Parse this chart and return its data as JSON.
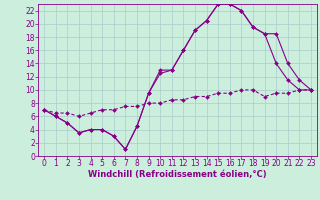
{
  "xlabel": "Windchill (Refroidissement éolien,°C)",
  "bg_color": "#cceedd",
  "grid_color": "#aacccc",
  "line_color": "#880088",
  "spine_color": "#880088",
  "xlim": [
    -0.5,
    23.5
  ],
  "ylim": [
    0,
    23
  ],
  "xticks": [
    0,
    1,
    2,
    3,
    4,
    5,
    6,
    7,
    8,
    9,
    10,
    11,
    12,
    13,
    14,
    15,
    16,
    17,
    18,
    19,
    20,
    21,
    22,
    23
  ],
  "yticks": [
    0,
    2,
    4,
    6,
    8,
    10,
    12,
    14,
    16,
    18,
    20,
    22
  ],
  "line1_x": [
    0,
    1,
    2,
    3,
    4,
    5,
    6,
    7,
    8,
    9,
    10,
    11,
    12,
    13,
    14,
    15,
    16,
    17,
    18,
    19,
    20,
    21,
    22,
    23
  ],
  "line1_y": [
    7,
    6,
    5,
    3.5,
    4,
    4,
    3,
    1,
    4.5,
    9.5,
    13,
    13,
    16,
    19,
    20.5,
    23,
    23,
    22,
    19.5,
    18.5,
    14,
    11.5,
    10,
    10
  ],
  "line2_x": [
    0,
    1,
    2,
    3,
    4,
    5,
    6,
    7,
    8,
    9,
    10,
    11,
    12,
    13,
    14,
    15,
    16,
    17,
    18,
    19,
    20,
    21,
    22,
    23
  ],
  "line2_y": [
    7,
    6,
    5,
    3.5,
    4,
    4,
    3,
    1,
    4.5,
    9.5,
    12.5,
    13,
    16,
    19,
    20.5,
    23,
    23,
    22,
    19.5,
    18.5,
    18.5,
    14,
    11.5,
    10
  ],
  "line3_x": [
    0,
    1,
    2,
    3,
    4,
    5,
    6,
    7,
    8,
    9,
    10,
    11,
    12,
    13,
    14,
    15,
    16,
    17,
    18,
    19,
    20,
    21,
    22,
    23
  ],
  "line3_y": [
    7,
    6.5,
    6.5,
    6,
    6.5,
    7,
    7,
    7.5,
    7.5,
    8,
    8,
    8.5,
    8.5,
    9,
    9,
    9.5,
    9.5,
    10,
    10,
    9,
    9.5,
    9.5,
    10,
    10
  ],
  "tick_fontsize": 5.5,
  "xlabel_fontsize": 6.0,
  "marker_size": 2.0,
  "linewidth": 0.8
}
